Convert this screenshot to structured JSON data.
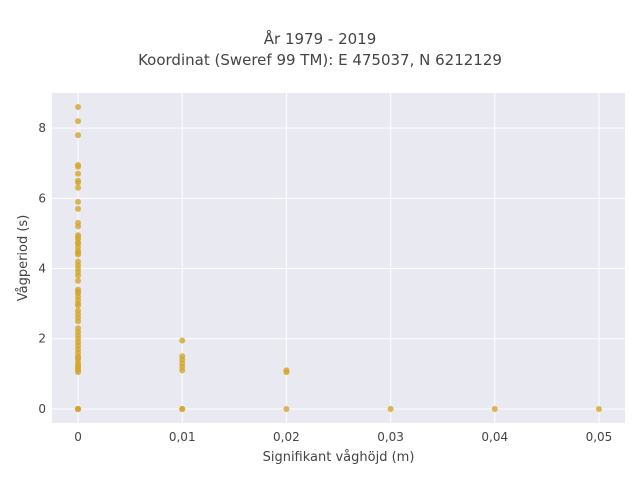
{
  "chart_data": {
    "type": "scatter",
    "title": "År 1979 - 2019",
    "subtitle": "Koordinat (Sweref 99 TM): E 475037, N 6212129",
    "xlabel": "Signifikant våghöjd (m)",
    "ylabel": "Vågperiod (s)",
    "xlim": [
      -0.0025,
      0.0525
    ],
    "ylim": [
      -0.4,
      9.0
    ],
    "xticks": [
      0,
      0.01,
      0.02,
      0.03,
      0.04,
      0.05
    ],
    "xtick_labels": [
      "0",
      "0,01",
      "0,02",
      "0,03",
      "0,04",
      "0,05"
    ],
    "yticks": [
      0,
      2,
      4,
      6,
      8
    ],
    "ytick_labels": [
      "0",
      "2",
      "4",
      "6",
      "8"
    ],
    "grid": true,
    "background": "#e9e9f1",
    "marker_color": "#d4a52a",
    "series": [
      {
        "x": [
          0,
          0,
          0,
          0,
          0,
          0,
          0,
          0,
          0,
          0,
          0,
          0,
          0,
          0,
          0,
          0,
          0,
          0,
          0,
          0,
          0,
          0,
          0,
          0,
          0,
          0,
          0,
          0,
          0,
          0,
          0,
          0,
          0,
          0,
          0,
          0,
          0,
          0,
          0,
          0,
          0,
          0,
          0,
          0,
          0,
          0,
          0,
          0,
          0,
          0,
          0,
          0,
          0,
          0,
          0,
          0,
          0,
          0,
          0,
          0,
          0,
          0.01,
          0.01,
          0.01,
          0.01,
          0.01,
          0.01,
          0.01,
          0.01,
          0.02,
          0.02,
          0.02,
          0.03,
          0.04,
          0.05
        ],
        "y": [
          8.6,
          8.2,
          7.8,
          6.95,
          6.9,
          6.7,
          6.5,
          6.45,
          6.3,
          5.9,
          5.7,
          5.3,
          5.2,
          4.95,
          4.9,
          4.85,
          4.75,
          4.7,
          4.6,
          4.5,
          4.45,
          4.4,
          4.2,
          4.1,
          4.0,
          3.9,
          3.8,
          3.65,
          3.4,
          3.35,
          3.3,
          3.2,
          3.1,
          3.0,
          2.95,
          2.8,
          2.7,
          2.6,
          2.5,
          2.3,
          2.2,
          2.1,
          2.0,
          1.9,
          1.8,
          1.7,
          1.6,
          1.5,
          1.45,
          1.4,
          1.3,
          1.25,
          1.2,
          1.15,
          1.1,
          1.05,
          0,
          0,
          0,
          0,
          0,
          1.95,
          1.5,
          1.4,
          1.3,
          1.2,
          1.1,
          0,
          0,
          1.1,
          1.05,
          0,
          0,
          0,
          0
        ]
      }
    ]
  }
}
